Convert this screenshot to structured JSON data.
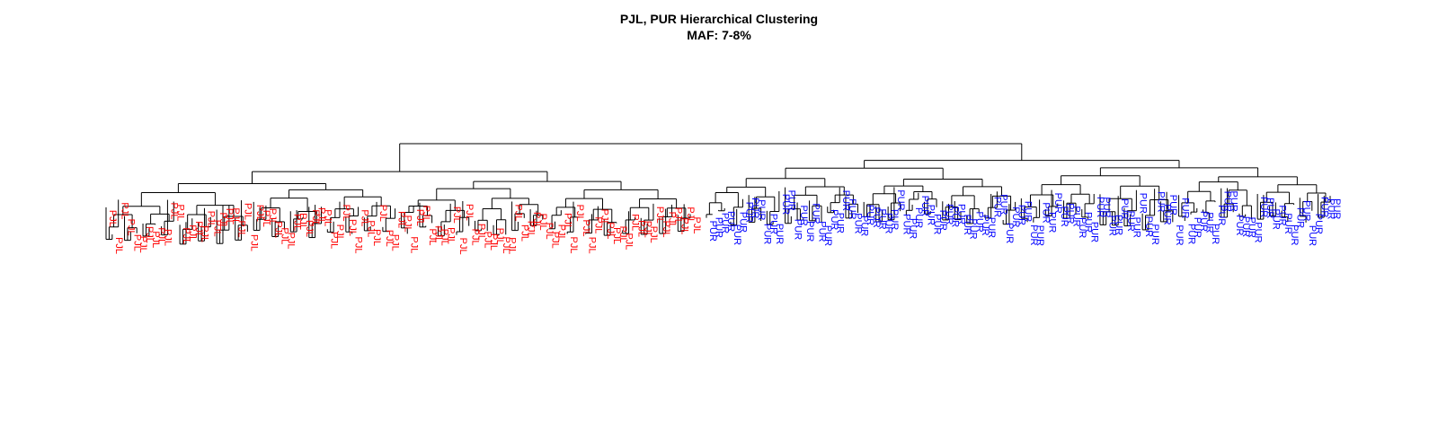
{
  "title": "PJL, PUR Hierarchical Clustering",
  "subtitle": "MAF: 7-8%",
  "colors": {
    "PJL": "#ff0000",
    "PUR": "#0000ff",
    "branch": "#000000"
  },
  "chart_data": {
    "type": "dendrogram",
    "title": "PJL, PUR Hierarchical Clustering",
    "subtitle": "MAF: 7-8%",
    "groups": [
      "PJL",
      "PUR"
    ],
    "left_cluster": {
      "label": "PJL",
      "leaf_count": 96
    },
    "right_cluster": {
      "label": "PUR",
      "leaf_count": 104
    }
  }
}
